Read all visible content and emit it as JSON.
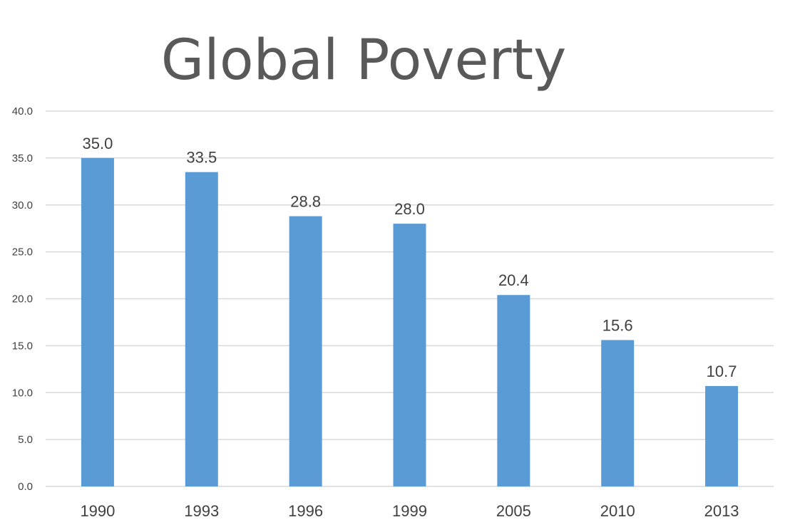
{
  "chart_data": {
    "type": "bar",
    "title": "Global Poverty",
    "xlabel": "",
    "ylabel": "",
    "categories": [
      "1990",
      "1993",
      "1996",
      "1999",
      "2005",
      "2010",
      "2013"
    ],
    "values": [
      35.0,
      33.5,
      28.8,
      28.0,
      20.4,
      15.6,
      10.7
    ],
    "data_labels": [
      "35.0",
      "33.5",
      "28.8",
      "28.0",
      "20.4",
      "15.6",
      "10.7"
    ],
    "ylim": [
      0,
      40
    ],
    "yticks": [
      "0.0",
      "5.0",
      "10.0",
      "15.0",
      "20.0",
      "25.0",
      "30.0",
      "35.0",
      "40.0"
    ],
    "grid": true,
    "legend": "none",
    "bar_color": "#5B9BD5",
    "grid_color": "#D9D9D9",
    "label_color": "#404040"
  }
}
